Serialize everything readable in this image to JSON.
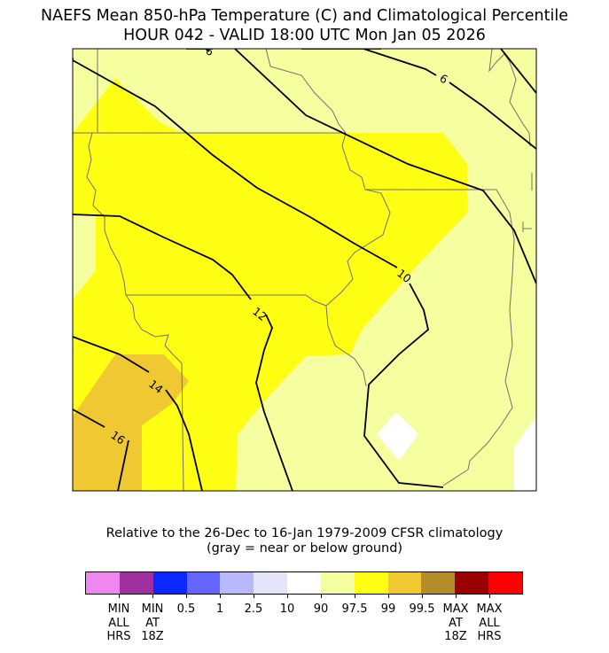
{
  "title": {
    "line1": "NAEFS Mean 850-hPa Temperature (C) and Climatological Percentile",
    "line2": "HOUR 042 - VALID 18:00 UTC Mon Jan 05 2026"
  },
  "caption": {
    "line1": "Relative to the 26-Dec to 16-Jan 1979-2009 CFSR climatology",
    "line2": "(gray = near or below ground)"
  },
  "contour_labels": [
    "6",
    "6",
    "10",
    "12",
    "14",
    "16"
  ],
  "colorbar": {
    "colors": [
      "#ee88ee",
      "#a030a0",
      "#0a28ff",
      "#6464ff",
      "#b8b8ff",
      "#e4e4fa",
      "#ffffff",
      "#f5ffa0",
      "#ffff14",
      "#f0c832",
      "#b48c28",
      "#9a0000",
      "#ff0000"
    ],
    "ticks": [
      [
        "MIN",
        "ALL",
        "HRS"
      ],
      [
        "MIN",
        "AT",
        "18Z"
      ],
      [
        "0.5"
      ],
      [
        "1"
      ],
      [
        "2.5"
      ],
      [
        "10"
      ],
      [
        "90"
      ],
      [
        "97.5"
      ],
      [
        "99"
      ],
      [
        "99.5"
      ],
      [
        "MAX",
        "AT",
        "18Z"
      ],
      [
        "MAX",
        "ALL",
        "HRS"
      ]
    ]
  },
  "map_colors": {
    "p90": "#f5ffa0",
    "p97_5": "#ffff14",
    "p99": "#f0c832",
    "below": "#ffffff",
    "border": "#707070",
    "contour": "#000000"
  }
}
